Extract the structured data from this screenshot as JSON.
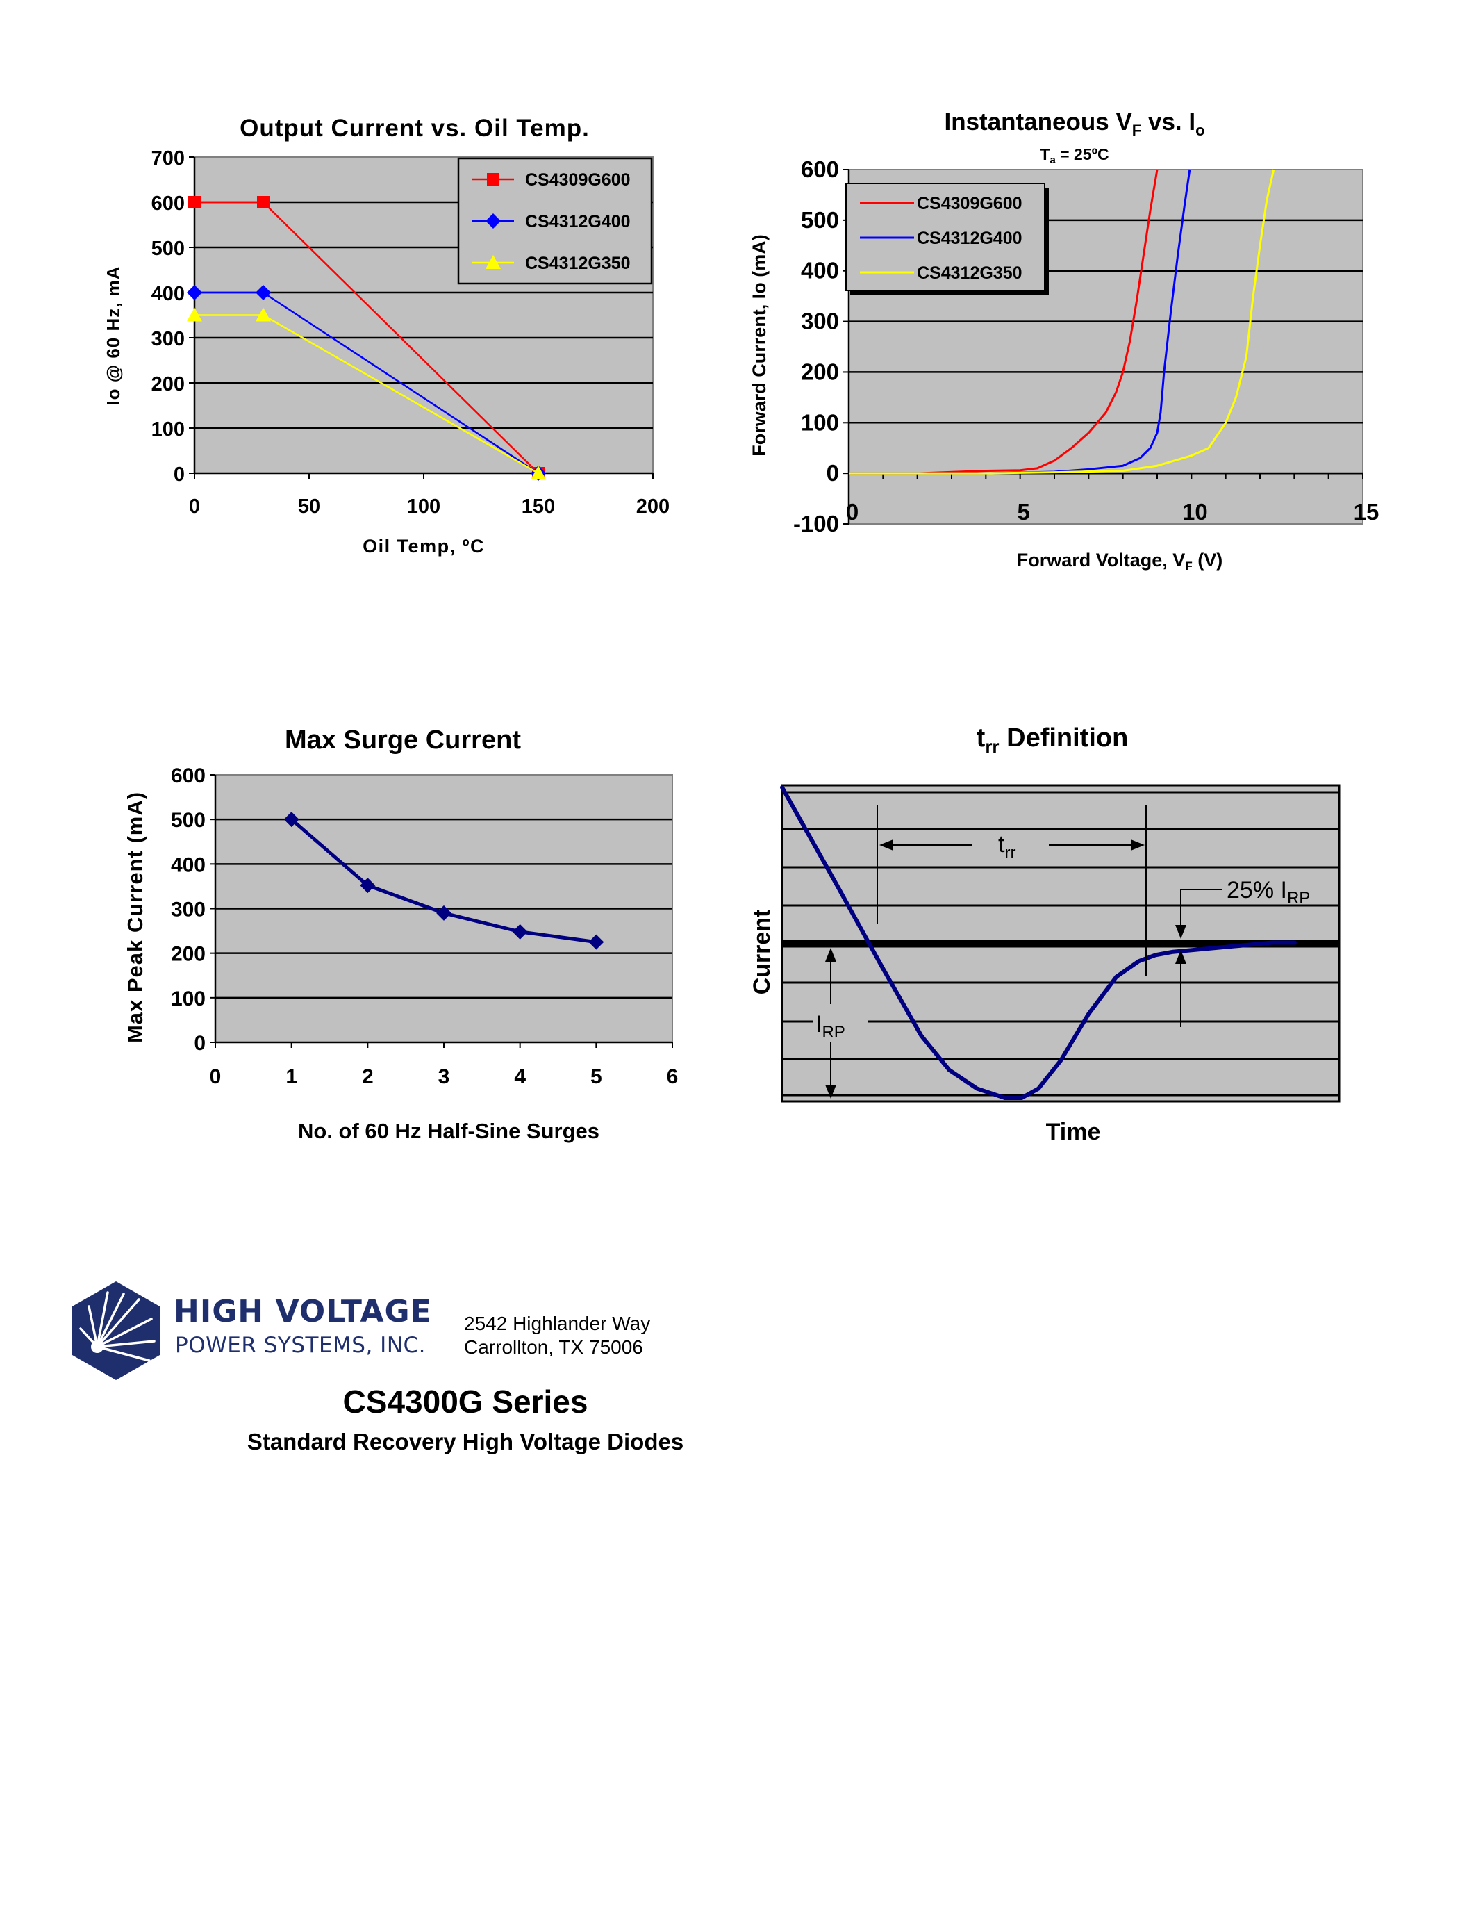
{
  "charts": {
    "output_current": {
      "title": "Output Current vs. Oil Temp.",
      "xlabel": "Oil Temp, ºC",
      "ylabel": "Io @ 60 Hz, mA",
      "x_ticks": [
        "0",
        "50",
        "100",
        "150",
        "200"
      ],
      "y_ticks": [
        "0",
        "100",
        "200",
        "300",
        "400",
        "500",
        "600",
        "700"
      ]
    },
    "forward_voltage": {
      "title_main": "Instantaneous V",
      "title_sub1": "F",
      "title_mid": " vs. I",
      "title_sub2": "o",
      "subtitle_main": "T",
      "subtitle_sub": "a",
      "subtitle_rest": " = 25ºC",
      "xlabel_main": "Forward Voltage, V",
      "xlabel_sub": "F",
      "xlabel_rest": " (V)",
      "ylabel": "Forward Current, Io (mA)",
      "x_ticks": [
        "0",
        "5",
        "10",
        "15"
      ],
      "y_ticks": [
        "-100",
        "0",
        "100",
        "200",
        "300",
        "400",
        "500",
        "600"
      ]
    },
    "surge": {
      "title": "Max Surge Current",
      "xlabel": "No. of 60 Hz Half-Sine Surges",
      "ylabel": "Max Peak Current (mA)",
      "x_ticks": [
        "0",
        "1",
        "2",
        "3",
        "4",
        "5",
        "6"
      ],
      "y_ticks": [
        "0",
        "100",
        "200",
        "300",
        "400",
        "500",
        "600"
      ]
    },
    "trr": {
      "title_main": "t",
      "title_sub": "rr",
      "title_rest": " Definition",
      "xlabel": "Time",
      "ylabel": "Current",
      "trr_label_main": "t",
      "trr_label_sub": "rr",
      "irp_label_main": "I",
      "irp_label_sub": "RP",
      "pct_label_main": "25% I",
      "pct_label_sub": "RP"
    }
  },
  "chart_data": [
    {
      "type": "line",
      "title": "Output Current vs. Oil Temp.",
      "xlabel": "Oil Temp, ºC",
      "ylabel": "Io @ 60 Hz, mA",
      "xlim": [
        0,
        200
      ],
      "ylim": [
        0,
        700
      ],
      "grid": true,
      "legend": "top-right",
      "series": [
        {
          "name": "CS4309G600",
          "color": "#ff0000",
          "marker": "square",
          "x": [
            0,
            30,
            150
          ],
          "y": [
            600,
            600,
            0
          ]
        },
        {
          "name": "CS4312G400",
          "color": "#0000ff",
          "marker": "diamond",
          "x": [
            0,
            30,
            150
          ],
          "y": [
            400,
            400,
            0
          ]
        },
        {
          "name": "CS4312G350",
          "color": "#ffff00",
          "marker": "triangle",
          "x": [
            0,
            30,
            150
          ],
          "y": [
            350,
            350,
            0
          ]
        }
      ]
    },
    {
      "type": "line",
      "title": "Instantaneous VF vs. Io",
      "subtitle": "Ta = 25ºC",
      "xlabel": "Forward Voltage, VF (V)",
      "ylabel": "Forward Current, Io (mA)",
      "xlim": [
        0,
        15
      ],
      "ylim": [
        -100,
        600
      ],
      "grid": true,
      "legend": "top-left",
      "series": [
        {
          "name": "CS4309G600",
          "color": "#ff0000",
          "x": [
            0,
            2,
            4,
            5,
            5.5,
            6,
            6.5,
            7,
            7.5,
            7.8,
            8,
            8.2,
            8.4,
            8.6,
            8.8,
            9.0
          ],
          "y": [
            0,
            0,
            5,
            6,
            10,
            25,
            50,
            80,
            120,
            160,
            200,
            260,
            340,
            430,
            520,
            600
          ]
        },
        {
          "name": "CS4312G400",
          "color": "#0000ff",
          "x": [
            0,
            4,
            6,
            7,
            8,
            8.5,
            8.8,
            9.0,
            9.1,
            9.2,
            9.4,
            9.6,
            9.8,
            9.95
          ],
          "y": [
            0,
            0,
            3,
            8,
            15,
            30,
            50,
            80,
            120,
            200,
            320,
            430,
            530,
            600
          ]
        },
        {
          "name": "CS4312G350",
          "color": "#ffff00",
          "x": [
            0,
            4,
            6,
            8,
            9,
            10,
            10.5,
            11,
            11.3,
            11.6,
            11.8,
            12.0,
            12.2,
            12.4
          ],
          "y": [
            0,
            0,
            2,
            5,
            15,
            35,
            50,
            100,
            150,
            230,
            350,
            450,
            540,
            600
          ]
        }
      ]
    },
    {
      "type": "line",
      "title": "Max Surge Current",
      "xlabel": "No. of 60 Hz Half-Sine Surges",
      "ylabel": "Max Peak Current (mA)",
      "xlim": [
        0,
        6
      ],
      "ylim": [
        0,
        600
      ],
      "grid": true,
      "series": [
        {
          "color": "#000080",
          "marker": "diamond",
          "x": [
            1,
            2,
            3,
            4,
            5
          ],
          "y": [
            500,
            352,
            290,
            248,
            225
          ]
        }
      ]
    },
    {
      "type": "line",
      "title": "trr Definition",
      "xlabel": "Time",
      "ylabel": "Current",
      "grid": true,
      "annotations": [
        "trr",
        "25% IRP",
        "IRP"
      ],
      "series": [
        {
          "color": "#000080",
          "x": [
            0,
            10,
            18,
            25,
            30,
            35,
            40,
            43,
            46,
            50,
            55,
            60,
            64,
            67,
            70,
            76,
            82,
            88,
            92
          ],
          "y": [
            1.0,
            0.68,
            0.42,
            0.2,
            0.09,
            0.03,
            0.0,
            0.0,
            0.03,
            0.12,
            0.27,
            0.39,
            0.44,
            0.46,
            0.47,
            0.48,
            0.49,
            0.5,
            0.5
          ]
        }
      ]
    }
  ],
  "footer": {
    "company_line1": "HIGH VOLTAGE",
    "company_line2": "POWER SYSTEMS, INC.",
    "address_line1": "2542 Highlander Way",
    "address_line2": "Carrollton, TX  75006",
    "series_title": "CS4300G Series",
    "series_subtitle": "Standard Recovery High Voltage Diodes"
  }
}
